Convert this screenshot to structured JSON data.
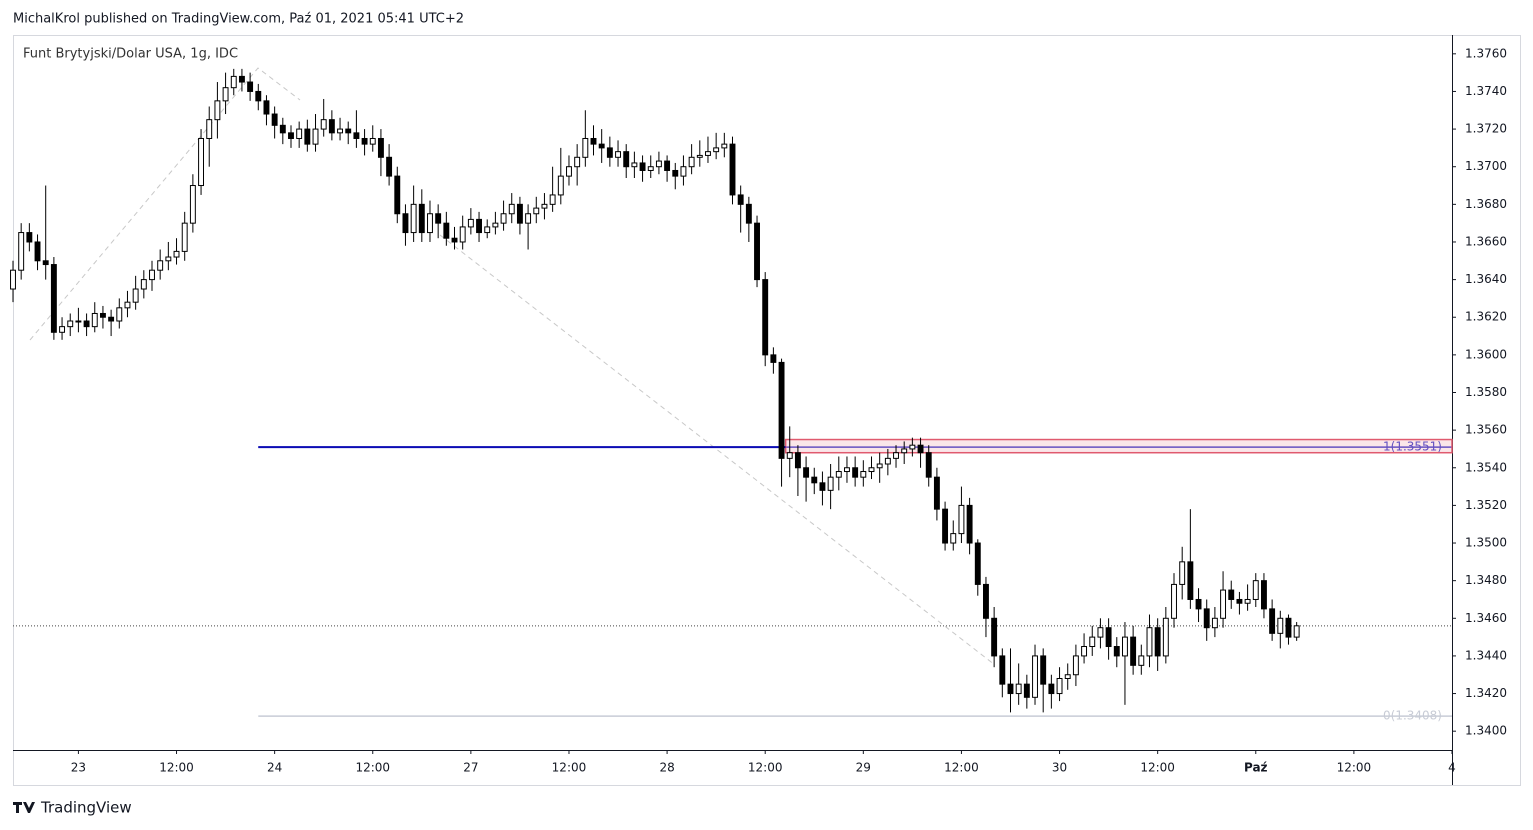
{
  "header": "MichalKrol published on TradingView.com, Paź 01, 2021 05:41 UTC+2",
  "footer": "TradingView",
  "chart_data": {
    "type": "candlestick",
    "title": "Funt Brytyjski/Dolar USA, 1g, IDC",
    "x": [
      -8,
      -7,
      -6,
      -5,
      -4,
      -3,
      -2,
      -1,
      0,
      1,
      2,
      3,
      4,
      5,
      6,
      7,
      8,
      9,
      10,
      11,
      12,
      13,
      14,
      15,
      16,
      17,
      18,
      19,
      20,
      21,
      22,
      23,
      24,
      25,
      26,
      27,
      28,
      29,
      30,
      31,
      32,
      33,
      34,
      35,
      36,
      37,
      38,
      39,
      40,
      41,
      42,
      43,
      44,
      45,
      46,
      47,
      48,
      49,
      50,
      51,
      52,
      53,
      54,
      55,
      56,
      57,
      58,
      59,
      60,
      61,
      62,
      63,
      64,
      65,
      66,
      67,
      68,
      69,
      70,
      71,
      72,
      73,
      74,
      75,
      76,
      77,
      78,
      79,
      80,
      81,
      82,
      83,
      84,
      85,
      86,
      87,
      88,
      89,
      90,
      91,
      92,
      93,
      94,
      95,
      96,
      97,
      98,
      99,
      100,
      101,
      102,
      103,
      104,
      105,
      106,
      107,
      108,
      109,
      110,
      111,
      112,
      113,
      114,
      115,
      116,
      117,
      118,
      119,
      120,
      121,
      122,
      123,
      124,
      125,
      126,
      127,
      128,
      129,
      130,
      131,
      132,
      133,
      134,
      135,
      136,
      137,
      138,
      139,
      140,
      141,
      142,
      143,
      144,
      145,
      146,
      147,
      148,
      149
    ],
    "open": [
      1.3635,
      1.3645,
      1.3665,
      1.366,
      1.365,
      1.3648,
      1.3612,
      1.3615,
      1.3618,
      1.3618,
      1.3615,
      1.3622,
      1.362,
      1.3618,
      1.3625,
      1.3628,
      1.3635,
      1.364,
      1.3645,
      1.365,
      1.3652,
      1.3655,
      1.367,
      1.369,
      1.3715,
      1.3725,
      1.3735,
      1.3742,
      1.3748,
      1.3745,
      1.374,
      1.3735,
      1.3728,
      1.3722,
      1.3718,
      1.3715,
      1.372,
      1.3712,
      1.372,
      1.3725,
      1.3718,
      1.372,
      1.3718,
      1.3715,
      1.3712,
      1.3715,
      1.3705,
      1.3695,
      1.3675,
      1.3665,
      1.368,
      1.3665,
      1.3675,
      1.367,
      1.3662,
      1.366,
      1.3668,
      1.3672,
      1.3665,
      1.3668,
      1.367,
      1.3675,
      1.368,
      1.367,
      1.3675,
      1.3678,
      1.368,
      1.3685,
      1.3695,
      1.37,
      1.3705,
      1.3715,
      1.3712,
      1.371,
      1.3705,
      1.3708,
      1.37,
      1.3702,
      1.3698,
      1.37,
      1.3703,
      1.3698,
      1.3695,
      1.37,
      1.3705,
      1.3706,
      1.3708,
      1.371,
      1.3712,
      1.3685,
      1.368,
      1.367,
      1.364,
      1.36,
      1.3596,
      1.3545,
      1.3548,
      1.354,
      1.3535,
      1.3532,
      1.3528,
      1.3535,
      1.3538,
      1.354,
      1.3535,
      1.3538,
      1.354,
      1.3542,
      1.3545,
      1.3548,
      1.355,
      1.3552,
      1.3548,
      1.3535,
      1.3518,
      1.35,
      1.3505,
      1.352,
      1.35,
      1.3478,
      1.346,
      1.344,
      1.3425,
      1.342,
      1.3425,
      1.3418,
      1.344,
      1.3425,
      1.342,
      1.3428,
      1.343,
      1.344,
      1.3445,
      1.345,
      1.3455,
      1.3445,
      1.344,
      1.345,
      1.3435,
      1.344,
      1.3455,
      1.344,
      1.346,
      1.3478,
      1.349,
      1.347,
      1.3465,
      1.3455,
      1.346,
      1.3475,
      1.347,
      1.3468,
      1.347,
      1.348,
      1.3465,
      1.3452,
      1.346,
      1.345
    ],
    "high": [
      1.365,
      1.367,
      1.367,
      1.3664,
      1.369,
      1.3652,
      1.362,
      1.3622,
      1.3625,
      1.3622,
      1.3628,
      1.3626,
      1.3624,
      1.363,
      1.3634,
      1.3642,
      1.3645,
      1.365,
      1.3656,
      1.366,
      1.3662,
      1.3676,
      1.3696,
      1.372,
      1.3732,
      1.3745,
      1.375,
      1.3752,
      1.3752,
      1.375,
      1.3744,
      1.3738,
      1.3732,
      1.3726,
      1.3722,
      1.3724,
      1.3725,
      1.3728,
      1.3736,
      1.373,
      1.3726,
      1.3724,
      1.373,
      1.372,
      1.3722,
      1.372,
      1.3712,
      1.37,
      1.368,
      1.369,
      1.3688,
      1.3682,
      1.368,
      1.3676,
      1.3668,
      1.3674,
      1.3678,
      1.3676,
      1.3672,
      1.3676,
      1.3682,
      1.3686,
      1.3684,
      1.368,
      1.3684,
      1.3686,
      1.37,
      1.371,
      1.3706,
      1.3712,
      1.373,
      1.3722,
      1.372,
      1.3716,
      1.3714,
      1.3712,
      1.3708,
      1.3706,
      1.3706,
      1.3708,
      1.3706,
      1.3702,
      1.3706,
      1.3712,
      1.3714,
      1.3716,
      1.3718,
      1.3718,
      1.3716,
      1.369,
      1.3684,
      1.3674,
      1.3644,
      1.3604,
      1.3598,
      1.3562,
      1.3552,
      1.3546,
      1.354,
      1.3538,
      1.3542,
      1.3546,
      1.3546,
      1.3546,
      1.3544,
      1.3546,
      1.3548,
      1.355,
      1.3552,
      1.3554,
      1.3556,
      1.3556,
      1.3552,
      1.354,
      1.3522,
      1.3512,
      1.353,
      1.3524,
      1.3502,
      1.3482,
      1.3466,
      1.3444,
      1.3444,
      1.3436,
      1.343,
      1.3446,
      1.3444,
      1.343,
      1.3434,
      1.3436,
      1.3446,
      1.3452,
      1.3456,
      1.346,
      1.346,
      1.345,
      1.3458,
      1.3456,
      1.3446,
      1.3462,
      1.346,
      1.3466,
      1.3484,
      1.3498,
      1.3518,
      1.3476,
      1.347,
      1.3466,
      1.3485,
      1.348,
      1.3474,
      1.3478,
      1.3484,
      1.3484,
      1.347,
      1.3464,
      1.3462,
      1.3458
    ],
    "low": [
      1.3628,
      1.364,
      1.3655,
      1.3645,
      1.364,
      1.3608,
      1.3608,
      1.361,
      1.3612,
      1.361,
      1.3612,
      1.3614,
      1.361,
      1.3614,
      1.362,
      1.3624,
      1.363,
      1.3634,
      1.364,
      1.3645,
      1.3648,
      1.365,
      1.3665,
      1.3685,
      1.37,
      1.3715,
      1.3728,
      1.3738,
      1.374,
      1.3735,
      1.373,
      1.3722,
      1.3715,
      1.3712,
      1.371,
      1.371,
      1.3708,
      1.3708,
      1.3716,
      1.3714,
      1.3714,
      1.3712,
      1.371,
      1.3706,
      1.3708,
      1.3695,
      1.369,
      1.367,
      1.3658,
      1.366,
      1.366,
      1.366,
      1.3662,
      1.3658,
      1.3656,
      1.3656,
      1.3664,
      1.366,
      1.3662,
      1.3664,
      1.3666,
      1.367,
      1.3664,
      1.3656,
      1.367,
      1.3672,
      1.3676,
      1.368,
      1.369,
      1.369,
      1.37,
      1.3706,
      1.3702,
      1.37,
      1.37,
      1.3694,
      1.3694,
      1.3692,
      1.3694,
      1.3696,
      1.3692,
      1.3688,
      1.369,
      1.3696,
      1.37,
      1.3702,
      1.3704,
      1.3705,
      1.368,
      1.3665,
      1.366,
      1.3636,
      1.3594,
      1.359,
      1.353,
      1.3535,
      1.3525,
      1.3522,
      1.3526,
      1.352,
      1.3518,
      1.3528,
      1.3532,
      1.353,
      1.353,
      1.3534,
      1.3532,
      1.3536,
      1.354,
      1.3542,
      1.3546,
      1.354,
      1.353,
      1.3512,
      1.3496,
      1.3496,
      1.35,
      1.3494,
      1.3472,
      1.345,
      1.3434,
      1.3418,
      1.341,
      1.3414,
      1.3412,
      1.3414,
      1.341,
      1.3412,
      1.3416,
      1.3422,
      1.3424,
      1.3436,
      1.344,
      1.3444,
      1.3438,
      1.3434,
      1.3414,
      1.343,
      1.343,
      1.3434,
      1.3432,
      1.3436,
      1.3455,
      1.347,
      1.3465,
      1.3458,
      1.3448,
      1.345,
      1.3455,
      1.3465,
      1.3462,
      1.3464,
      1.3466,
      1.346,
      1.3448,
      1.3444,
      1.3446,
      1.3448
    ],
    "close": [
      1.3645,
      1.3665,
      1.366,
      1.365,
      1.3648,
      1.3612,
      1.3615,
      1.3618,
      1.3618,
      1.3615,
      1.3622,
      1.362,
      1.3618,
      1.3625,
      1.3628,
      1.3635,
      1.364,
      1.3645,
      1.365,
      1.3652,
      1.3655,
      1.367,
      1.369,
      1.3715,
      1.3725,
      1.3735,
      1.3742,
      1.3748,
      1.3745,
      1.374,
      1.3735,
      1.3728,
      1.3722,
      1.3718,
      1.3715,
      1.372,
      1.3712,
      1.372,
      1.3725,
      1.3718,
      1.372,
      1.3718,
      1.3715,
      1.3712,
      1.3715,
      1.3705,
      1.3695,
      1.3675,
      1.3665,
      1.368,
      1.3665,
      1.3675,
      1.367,
      1.3662,
      1.366,
      1.3668,
      1.3672,
      1.3665,
      1.3668,
      1.367,
      1.3675,
      1.368,
      1.367,
      1.3675,
      1.3678,
      1.368,
      1.3685,
      1.3695,
      1.37,
      1.3705,
      1.3715,
      1.3712,
      1.371,
      1.3705,
      1.3708,
      1.37,
      1.3702,
      1.3698,
      1.37,
      1.3703,
      1.3698,
      1.3695,
      1.37,
      1.3705,
      1.3706,
      1.3708,
      1.371,
      1.3712,
      1.3685,
      1.368,
      1.367,
      1.364,
      1.36,
      1.3596,
      1.3545,
      1.3548,
      1.354,
      1.3535,
      1.3532,
      1.3528,
      1.3535,
      1.3538,
      1.354,
      1.3535,
      1.3538,
      1.354,
      1.3542,
      1.3545,
      1.3548,
      1.355,
      1.3552,
      1.3548,
      1.3535,
      1.3518,
      1.35,
      1.3505,
      1.352,
      1.35,
      1.3478,
      1.346,
      1.344,
      1.3425,
      1.342,
      1.3425,
      1.3418,
      1.344,
      1.3425,
      1.342,
      1.3428,
      1.343,
      1.344,
      1.3445,
      1.345,
      1.3455,
      1.3445,
      1.344,
      1.345,
      1.3435,
      1.344,
      1.3455,
      1.344,
      1.346,
      1.3478,
      1.349,
      1.347,
      1.3465,
      1.3455,
      1.346,
      1.3475,
      1.347,
      1.3468,
      1.347,
      1.348,
      1.3465,
      1.3452,
      1.346,
      1.345,
      1.3456
    ],
    "up_color": "#ffffff",
    "down_color": "#000000",
    "xlim": [
      -8,
      168
    ],
    "ylim": [
      1.339,
      1.377
    ],
    "xticks": [
      {
        "value": 0,
        "label": "23"
      },
      {
        "value": 12,
        "label": "12:00"
      },
      {
        "value": 24,
        "label": "24"
      },
      {
        "value": 36,
        "label": "12:00"
      },
      {
        "value": 48,
        "label": "27"
      },
      {
        "value": 60,
        "label": "12:00"
      },
      {
        "value": 72,
        "label": "28"
      },
      {
        "value": 84,
        "label": "12:00"
      },
      {
        "value": 96,
        "label": "29"
      },
      {
        "value": 108,
        "label": "12:00"
      },
      {
        "value": 120,
        "label": "30"
      },
      {
        "value": 132,
        "label": "12:00"
      },
      {
        "value": 144,
        "label": "Paź"
      },
      {
        "value": 156,
        "label": "12:00"
      },
      {
        "value": 168,
        "label": "4"
      }
    ],
    "yticks": [
      {
        "value": 1.34,
        "label": "1.3400"
      },
      {
        "value": 1.342,
        "label": "1.3420"
      },
      {
        "value": 1.344,
        "label": "1.3440"
      },
      {
        "value": 1.346,
        "label": "1.3460"
      },
      {
        "value": 1.348,
        "label": "1.3480"
      },
      {
        "value": 1.35,
        "label": "1.3500"
      },
      {
        "value": 1.352,
        "label": "1.3520"
      },
      {
        "value": 1.354,
        "label": "1.3540"
      },
      {
        "value": 1.356,
        "label": "1.3560"
      },
      {
        "value": 1.358,
        "label": "1.3580"
      },
      {
        "value": 1.36,
        "label": "1.3600"
      },
      {
        "value": 1.362,
        "label": "1.3620"
      },
      {
        "value": 1.364,
        "label": "1.3640"
      },
      {
        "value": 1.366,
        "label": "1.3660"
      },
      {
        "value": 1.368,
        "label": "1.3680"
      },
      {
        "value": 1.37,
        "label": "1.3700"
      },
      {
        "value": 1.372,
        "label": "1.3720"
      },
      {
        "value": 1.374,
        "label": "1.3740"
      },
      {
        "value": 1.376,
        "label": "1.3760"
      }
    ],
    "grid": false,
    "hline": {
      "value": 1.3551,
      "x": [
        22,
        86.5
      ],
      "color": "#0c0cb4"
    },
    "zone": {
      "values": [
        1.3548,
        1.3555
      ],
      "x": [
        86.5,
        168
      ],
      "color": "#e05a6e"
    },
    "fib": {
      "x": [
        22,
        168
      ],
      "levels": [
        {
          "value": 1.3551,
          "label": "1(1.3551)",
          "color": "#5050d0"
        },
        {
          "value": 1.3408,
          "label": "0(1.3408)",
          "color": "#c8ccd6"
        }
      ]
    },
    "price_line": 1.3456
  }
}
